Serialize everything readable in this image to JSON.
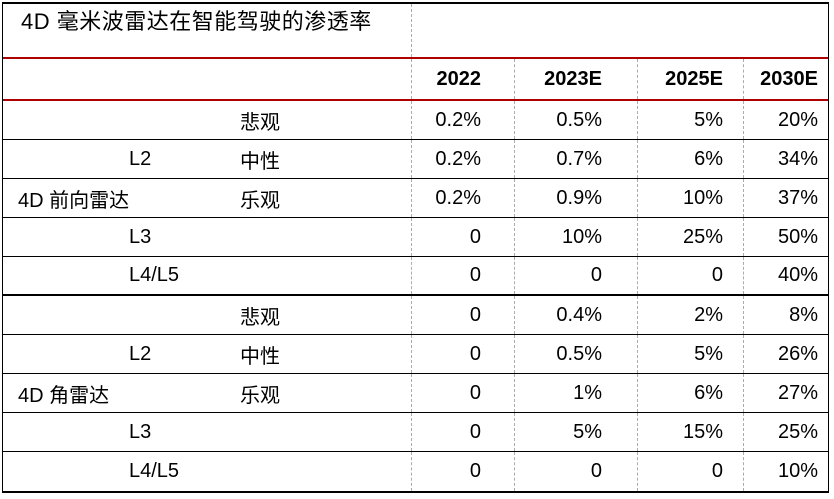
{
  "title": "4D 毫米波雷达在智能驾驶的渗透率",
  "colors": {
    "rule_red": "#b00000",
    "grid_dash_gray": "#ababab",
    "line_black": "#000000",
    "background": "#ffffff",
    "text": "#000000"
  },
  "table": {
    "columns": [
      "2022",
      "2023E",
      "2025E",
      "2030E"
    ],
    "rows": [
      {
        "section": "4D 前向雷达",
        "group": "",
        "level": "",
        "scenario": "悲观",
        "values": [
          "0.2%",
          "0.5%",
          "5%",
          "20%"
        ]
      },
      {
        "section": "4D 前向雷达",
        "group": "",
        "level": "L2",
        "scenario": "中性",
        "values": [
          "0.2%",
          "0.7%",
          "6%",
          "34%"
        ]
      },
      {
        "section": "4D 前向雷达",
        "group": "4D 前向雷达",
        "level": "",
        "scenario": "乐观",
        "values": [
          "0.2%",
          "0.9%",
          "10%",
          "37%"
        ]
      },
      {
        "section": "4D 前向雷达",
        "group": "",
        "level": "L3",
        "scenario": "",
        "values": [
          "0",
          "10%",
          "25%",
          "50%"
        ]
      },
      {
        "section": "4D 前向雷达",
        "group": "",
        "level": "L4/L5",
        "scenario": "",
        "values": [
          "0",
          "0",
          "0",
          "40%"
        ]
      },
      {
        "section": "4D 角雷达",
        "group": "",
        "level": "",
        "scenario": "悲观",
        "values": [
          "0",
          "0.4%",
          "2%",
          "8%"
        ]
      },
      {
        "section": "4D 角雷达",
        "group": "",
        "level": "L2",
        "scenario": "中性",
        "values": [
          "0",
          "0.5%",
          "5%",
          "26%"
        ]
      },
      {
        "section": "4D 角雷达",
        "group": "4D 角雷达",
        "level": "",
        "scenario": "乐观",
        "values": [
          "0",
          "1%",
          "6%",
          "27%"
        ]
      },
      {
        "section": "4D 角雷达",
        "group": "",
        "level": "L3",
        "scenario": "",
        "values": [
          "0",
          "5%",
          "15%",
          "25%"
        ]
      },
      {
        "section": "4D 角雷达",
        "group": "",
        "level": "L4/L5",
        "scenario": "",
        "values": [
          "0",
          "0",
          "0",
          "10%"
        ]
      }
    ]
  }
}
